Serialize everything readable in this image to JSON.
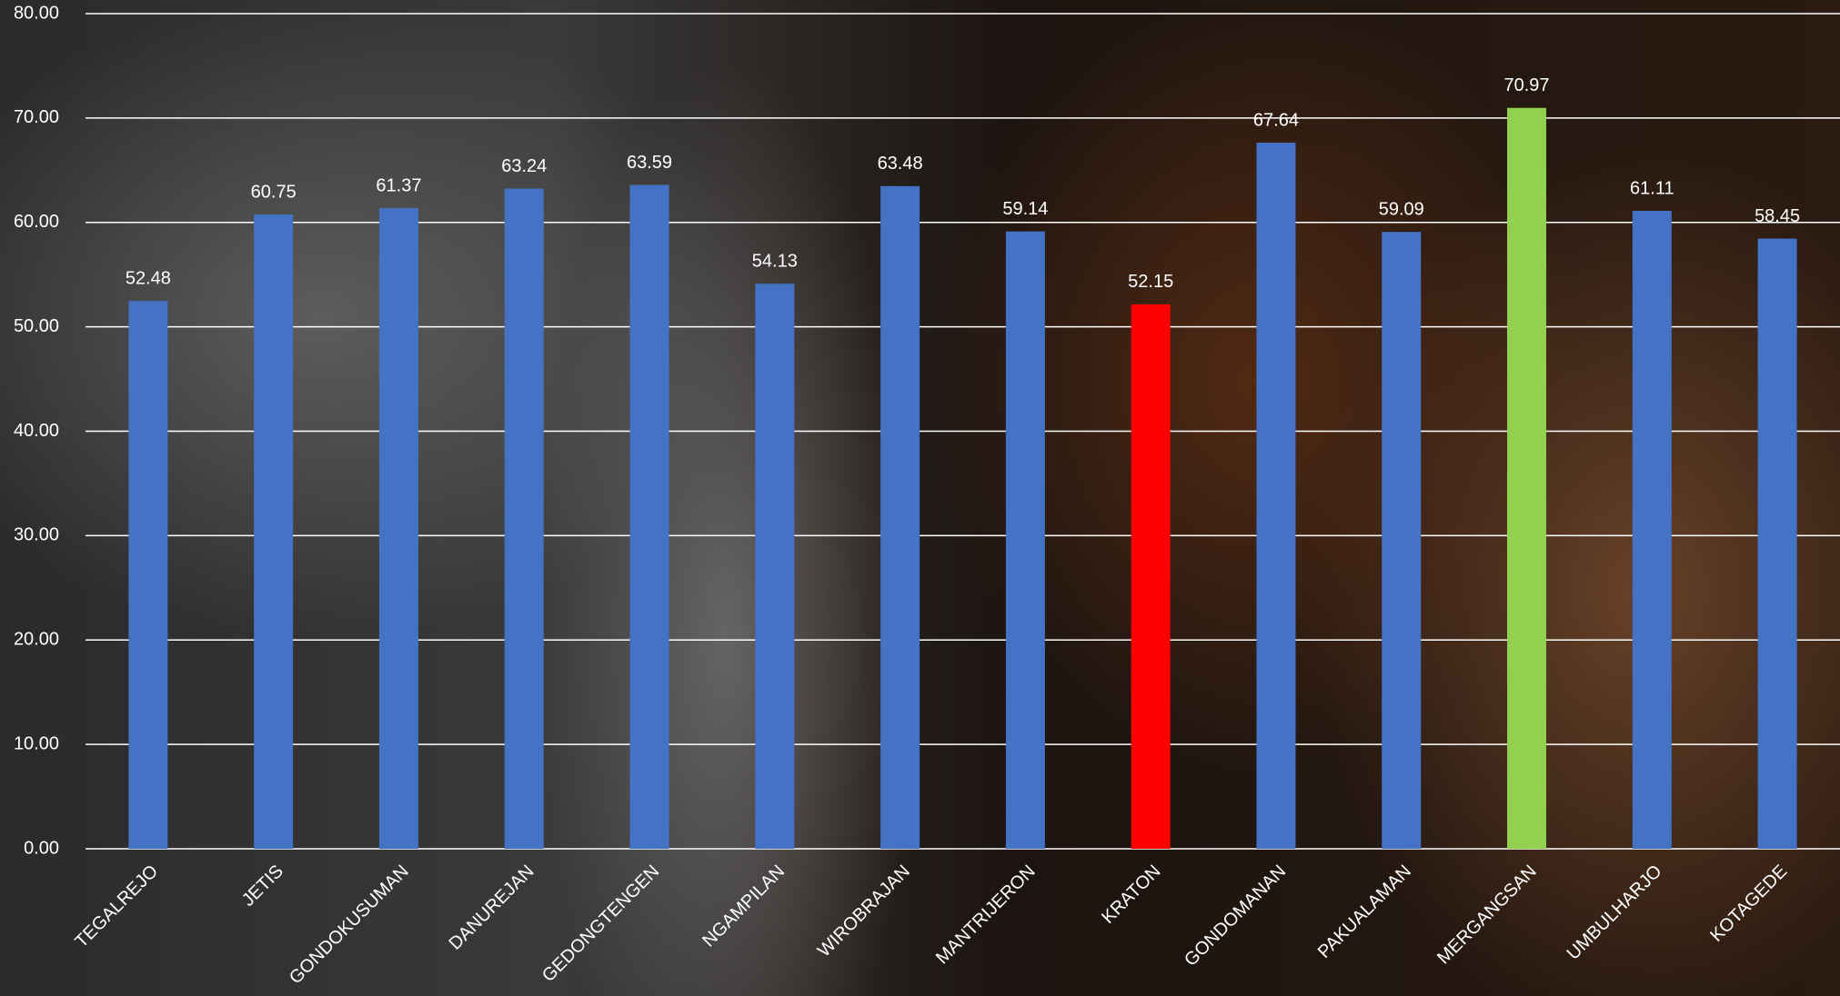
{
  "chart_data": {
    "type": "bar",
    "categories": [
      "TEGALREJO",
      "JETIS",
      "GONDOKUSUMAN",
      "DANUREJAN",
      "GEDONGTENGEN",
      "NGAMPILAN",
      "WIROBRAJAN",
      "MANTRIJERON",
      "KRATON",
      "GONDOMANAN",
      "PAKUALAMAN",
      "MERGANGSAN",
      "UMBULHARJO",
      "KOTAGEDE"
    ],
    "values": [
      52.48,
      60.75,
      61.37,
      63.24,
      63.59,
      54.13,
      63.48,
      59.14,
      52.15,
      67.64,
      59.09,
      70.97,
      61.11,
      58.45
    ],
    "colors": [
      "#4472c4",
      "#4472c4",
      "#4472c4",
      "#4472c4",
      "#4472c4",
      "#4472c4",
      "#4472c4",
      "#4472c4",
      "#ff0000",
      "#4472c4",
      "#4472c4",
      "#92d050",
      "#4472c4",
      "#4472c4"
    ],
    "ylim": [
      0,
      80
    ],
    "yticks": [
      {
        "value": 0,
        "label": "0.00"
      },
      {
        "value": 10,
        "label": "10.00"
      },
      {
        "value": 20,
        "label": "20.00"
      },
      {
        "value": 30,
        "label": "30.00"
      },
      {
        "value": 40,
        "label": "40.00"
      },
      {
        "value": 50,
        "label": "50.00"
      },
      {
        "value": 60,
        "label": "60.00"
      },
      {
        "value": 70,
        "label": "70.00"
      },
      {
        "value": 80,
        "label": "80.00"
      }
    ],
    "grid": true
  }
}
